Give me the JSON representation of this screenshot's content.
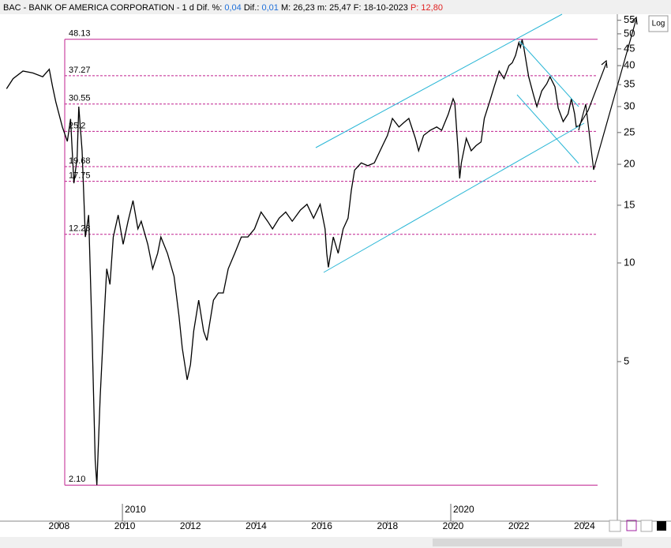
{
  "header": {
    "name": "BAC - BANK OF AMERICA CORPORATION - 1 d",
    "dif_pct_label": "Dif. %:",
    "dif_pct": "0,04",
    "dif_label": "Dif.:",
    "dif": "0,01",
    "max_label": "M:",
    "max": "26,23",
    "min_label": "m:",
    "min": "25,47",
    "date_label": "F:",
    "date": "18-10-2023",
    "p_label": "P:",
    "p": "12,80"
  },
  "log_button": "Log",
  "chart_data": {
    "type": "line",
    "log_scale": true,
    "color": "#000000",
    "level_color": "#c0208f",
    "channel_color": "#29b6d6",
    "xlim": [
      2006.2,
      2025.0
    ],
    "xticks": [
      2008,
      2010,
      2012,
      2014,
      2016,
      2018,
      2020,
      2022,
      2024
    ],
    "decade_labels": [
      2010,
      2020
    ],
    "ylim": [
      1.63,
      57.4
    ],
    "yticks": [
      55,
      50,
      45,
      40,
      35,
      30,
      25,
      20,
      15,
      10,
      5
    ],
    "levels": [
      48.13,
      37.27,
      30.55,
      25.2,
      19.68,
      17.75,
      12.23,
      {
        "value": 2.1,
        "label": "2.10"
      }
    ],
    "x": [
      2006.4,
      2006.6,
      2006.9,
      2007.2,
      2007.5,
      2007.7,
      2007.8,
      2007.9,
      2008.1,
      2008.25,
      2008.35,
      2008.45,
      2008.55,
      2008.6,
      2008.7,
      2008.8,
      2008.9,
      2009.0,
      2009.1,
      2009.15,
      2009.25,
      2009.35,
      2009.45,
      2009.55,
      2009.65,
      2009.8,
      2009.95,
      2010.1,
      2010.25,
      2010.4,
      2010.5,
      2010.7,
      2010.85,
      2011.0,
      2011.1,
      2011.3,
      2011.5,
      2011.65,
      2011.75,
      2011.9,
      2012.0,
      2012.1,
      2012.25,
      2012.4,
      2012.5,
      2012.7,
      2012.85,
      2013.0,
      2013.15,
      2013.35,
      2013.55,
      2013.75,
      2013.95,
      2014.15,
      2014.35,
      2014.5,
      2014.7,
      2014.9,
      2015.1,
      2015.35,
      2015.55,
      2015.75,
      2015.95,
      2016.1,
      2016.15,
      2016.2,
      2016.35,
      2016.5,
      2016.65,
      2016.8,
      2016.9,
      2017.0,
      2017.2,
      2017.4,
      2017.6,
      2017.85,
      2018.0,
      2018.15,
      2018.35,
      2018.5,
      2018.65,
      2018.85,
      2018.95,
      2019.1,
      2019.3,
      2019.5,
      2019.65,
      2019.85,
      2020.0,
      2020.05,
      2020.15,
      2020.2,
      2020.25,
      2020.4,
      2020.55,
      2020.7,
      2020.85,
      2020.95,
      2021.1,
      2021.25,
      2021.4,
      2021.55,
      2021.7,
      2021.8,
      2021.9,
      2022.0,
      2022.05,
      2022.1,
      2022.15,
      2022.3,
      2022.45,
      2022.55,
      2022.7,
      2022.85,
      2022.95,
      2023.1,
      2023.2,
      2023.35,
      2023.5,
      2023.6,
      2023.7,
      2023.75,
      2023.8
    ],
    "values": [
      34,
      36.5,
      38.5,
      38,
      37,
      39,
      34.5,
      31,
      26,
      23.5,
      27.5,
      17.5,
      21,
      30,
      22,
      12,
      14,
      6.2,
      2.5,
      2.1,
      3.9,
      6.2,
      9.6,
      8.6,
      12,
      14,
      11.4,
      13.4,
      15.5,
      12.7,
      13.4,
      11.4,
      9.6,
      10.7,
      12,
      10.7,
      9.1,
      6.9,
      5.5,
      4.4,
      4.9,
      6.2,
      7.7,
      6.2,
      5.8,
      7.7,
      8.1,
      8.1,
      9.6,
      10.7,
      12,
      12,
      12.7,
      14.3,
      13.4,
      12.7,
      13.7,
      14.3,
      13.4,
      14.5,
      15.1,
      13.7,
      15.1,
      12.7,
      10.7,
      9.7,
      12,
      10.7,
      12.7,
      13.7,
      16.7,
      19.2,
      20.2,
      19.8,
      20.2,
      22.8,
      24.5,
      27.6,
      26,
      26.8,
      27.6,
      24,
      22,
      24.5,
      25.4,
      26,
      25.4,
      28.4,
      31.7,
      30.8,
      22,
      18.1,
      20.2,
      24,
      22,
      22.8,
      23.4,
      27.6,
      30.8,
      34.5,
      38.5,
      36.5,
      40,
      40.8,
      43,
      47,
      45.5,
      48,
      45.5,
      37,
      32.5,
      30,
      33.5,
      35.2,
      37,
      34.5,
      29.7,
      27,
      28.5,
      31.7,
      28.5,
      26,
      26.2
    ]
  }
}
